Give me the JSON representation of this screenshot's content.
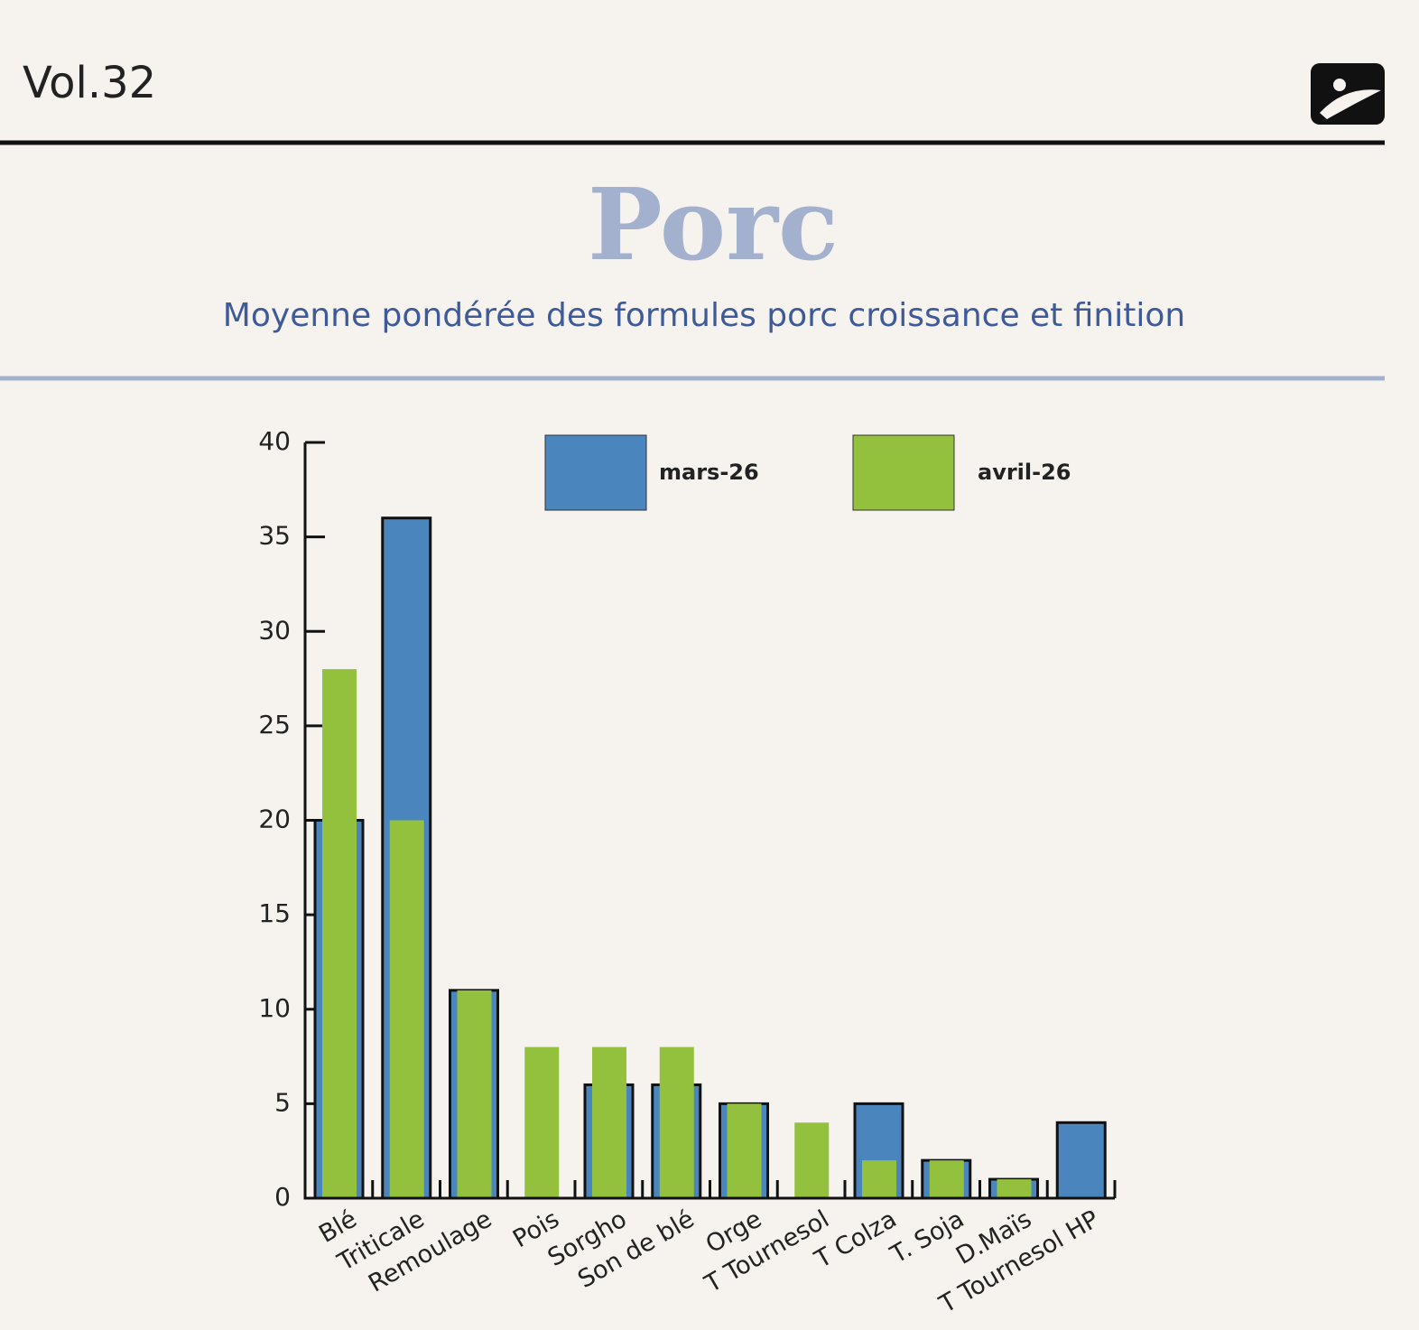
{
  "header": {
    "volume": "Vol.32"
  },
  "chart_data": {
    "type": "bar",
    "title": "Porc",
    "subtitle": "Moyenne pondérée des formules porc croissance et finition",
    "categories": [
      "Blé",
      "Triticale",
      "Remoulage",
      "Pois",
      "Sorgho",
      "Son de blé",
      "Orge",
      "T Tournesol",
      "T Colza",
      "T. Soja",
      "D.Maïs",
      "T Tournesol HP"
    ],
    "series": [
      {
        "name": "mars-26",
        "color": "#4a86bd",
        "values": [
          20,
          36,
          11,
          0,
          6,
          6,
          5,
          0,
          5,
          2,
          1,
          4
        ]
      },
      {
        "name": "avril-26",
        "color": "#93c13e",
        "values": [
          28,
          20,
          11,
          8,
          8,
          8,
          5,
          4,
          2,
          2,
          1,
          0
        ]
      }
    ],
    "ylim": [
      0,
      40
    ],
    "yticks": [
      0,
      5,
      10,
      15,
      20,
      25,
      30,
      35,
      40
    ]
  }
}
